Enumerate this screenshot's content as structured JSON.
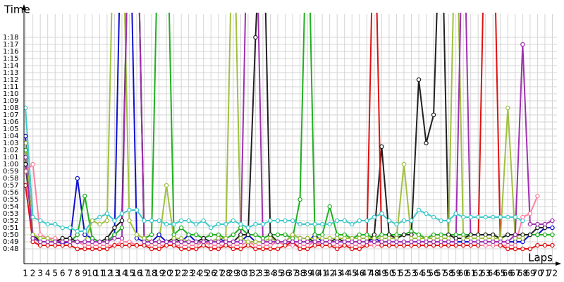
{
  "chart_data": {
    "type": "line",
    "y_label": "Time",
    "x_label": "Laps",
    "x": [
      1,
      2,
      3,
      4,
      5,
      6,
      7,
      8,
      9,
      10,
      11,
      12,
      13,
      14,
      15,
      16,
      17,
      18,
      19,
      20,
      21,
      22,
      23,
      24,
      25,
      26,
      27,
      28,
      29,
      30,
      31,
      32,
      33,
      34,
      35,
      36,
      37,
      38,
      39,
      40,
      41,
      42,
      43,
      44,
      45,
      46,
      47,
      48,
      49,
      50,
      51,
      52,
      53,
      54,
      55,
      56,
      57,
      58,
      59,
      60,
      61,
      62,
      63,
      64,
      65,
      66,
      67,
      68,
      69,
      70,
      71,
      72
    ],
    "xlim": [
      0.8,
      73
    ],
    "xticks": [
      1,
      2,
      3,
      4,
      5,
      6,
      7,
      8,
      9,
      10,
      11,
      12,
      13,
      14,
      15,
      16,
      17,
      18,
      19,
      20,
      21,
      22,
      23,
      24,
      25,
      26,
      27,
      28,
      29,
      30,
      31,
      32,
      33,
      34,
      35,
      36,
      37,
      38,
      39,
      40,
      41,
      42,
      43,
      44,
      45,
      46,
      47,
      48,
      49,
      50,
      51,
      52,
      53,
      54,
      55,
      56,
      57,
      58,
      59,
      60,
      61,
      62,
      63,
      64,
      65,
      66,
      67,
      68,
      69,
      70,
      71,
      72
    ],
    "ylim": [
      46,
      81
    ],
    "yticks": [
      {
        "value": 48,
        "label": "0:48"
      },
      {
        "value": 49,
        "label": "0:49"
      },
      {
        "value": 50,
        "label": "0:50"
      },
      {
        "value": 51,
        "label": "0:51"
      },
      {
        "value": 52,
        "label": "0:52"
      },
      {
        "value": 53,
        "label": "0:53"
      },
      {
        "value": 54,
        "label": "0:54"
      },
      {
        "value": 55,
        "label": "0:55"
      },
      {
        "value": 56,
        "label": "0:56"
      },
      {
        "value": 57,
        "label": "0:57"
      },
      {
        "value": 58,
        "label": "0:58"
      },
      {
        "value": 59,
        "label": "0:59"
      },
      {
        "value": 60,
        "label": "1:00"
      },
      {
        "value": 61,
        "label": "1:01"
      },
      {
        "value": 62,
        "label": "1:02"
      },
      {
        "value": 63,
        "label": "1:03"
      },
      {
        "value": 64,
        "label": "1:04"
      },
      {
        "value": 65,
        "label": "1:05"
      },
      {
        "value": 66,
        "label": "1:06"
      },
      {
        "value": 67,
        "label": "1:07"
      },
      {
        "value": 68,
        "label": "1:08"
      },
      {
        "value": 69,
        "label": "1:09"
      },
      {
        "value": 70,
        "label": "1:10"
      },
      {
        "value": 71,
        "label": "1:11"
      },
      {
        "value": 72,
        "label": "1:12"
      },
      {
        "value": 73,
        "label": "1:13"
      },
      {
        "value": 74,
        "label": "1:14"
      },
      {
        "value": 75,
        "label": "1:15"
      },
      {
        "value": 76,
        "label": "1:16"
      },
      {
        "value": 77,
        "label": "1:17"
      },
      {
        "value": 78,
        "label": "1:18"
      }
    ],
    "grid": true,
    "series": [
      {
        "color": "#1010d0",
        "values": [
          64,
          49.5,
          49,
          49,
          49,
          48.8,
          49,
          58,
          50,
          49.5,
          49,
          49,
          50,
          100,
          100,
          49.5,
          49,
          49,
          50,
          49,
          49,
          49,
          50,
          49,
          49,
          49,
          49.5,
          49,
          49,
          49,
          50,
          49,
          49,
          49,
          49,
          49,
          49,
          49,
          49,
          50,
          49,
          49,
          49,
          49,
          49,
          49,
          49,
          49.5,
          49,
          49,
          49,
          49,
          49,
          49,
          49,
          49,
          49,
          49,
          49,
          49,
          49,
          49,
          49,
          49,
          49,
          49,
          49,
          49,
          50,
          50,
          51,
          51
        ]
      },
      {
        "color": "#20b020",
        "values": [
          62,
          50,
          49.5,
          49.5,
          49,
          49,
          49,
          50,
          55.5,
          49.5,
          49,
          49,
          50,
          51,
          100,
          100,
          49.5,
          50,
          100,
          100,
          50,
          51,
          50,
          50,
          49.5,
          50,
          50,
          49.5,
          50,
          51,
          50,
          50,
          49.5,
          50,
          50,
          50,
          49.5,
          55,
          100,
          50,
          50,
          54,
          50,
          50,
          49.5,
          50,
          50,
          49.5,
          50,
          50,
          50,
          50,
          50.5,
          50,
          49.5,
          50,
          50,
          50,
          50,
          50,
          50,
          50,
          50,
          50,
          49.5,
          50,
          50,
          50,
          50,
          50,
          50,
          50
        ]
      },
      {
        "color": "#40c8c8",
        "values": [
          68,
          52.5,
          52,
          51.5,
          51.5,
          51,
          51,
          50.5,
          50.5,
          52,
          52.5,
          53,
          52,
          53,
          53.5,
          53.5,
          52,
          52,
          52,
          51.5,
          51.5,
          52,
          52,
          51.5,
          52,
          51,
          51.5,
          51.5,
          52,
          51.5,
          51,
          51.5,
          51.5,
          52,
          52,
          52,
          52,
          51.5,
          51.5,
          51.5,
          51.5,
          51.5,
          52,
          52,
          51.5,
          52,
          52,
          52.5,
          53,
          52,
          51.5,
          52,
          52,
          53.5,
          53,
          52.5,
          52,
          52,
          53,
          52.5,
          52.5,
          52.5,
          52.5,
          52.5,
          52.5,
          52.5,
          52.5,
          52,
          null,
          null,
          null,
          null
        ]
      },
      {
        "color": "#ff80a0",
        "values": [
          59,
          60,
          50,
          49.5,
          49.5,
          49,
          49,
          49,
          48.5,
          48.5,
          48.5,
          48.5,
          48.5,
          49,
          49,
          48.5,
          48.5,
          48.5,
          48.5,
          48.5,
          48.5,
          48.5,
          48.5,
          48.5,
          49,
          48.5,
          48.5,
          48.5,
          48.5,
          48.5,
          49,
          48.5,
          48.5,
          48.5,
          49,
          48.5,
          48.5,
          48.5,
          48.5,
          49,
          48.5,
          48.5,
          48.5,
          48.5,
          48.5,
          48.5,
          48.5,
          48.5,
          48.5,
          48.5,
          48.5,
          48.5,
          48.5,
          48.5,
          48.5,
          48.5,
          48.5,
          48.5,
          48.5,
          48.5,
          48.5,
          48.5,
          48.5,
          48.5,
          48.5,
          48.5,
          48.5,
          52.5,
          53,
          55.5,
          null,
          null
        ]
      },
      {
        "color": "#202020",
        "values": [
          60,
          50,
          49,
          49,
          49,
          49.5,
          49.5,
          49,
          49,
          49,
          49,
          49.5,
          51,
          52,
          100,
          100,
          49.5,
          49,
          49,
          49,
          49.5,
          49,
          49,
          49,
          49.5,
          49,
          49,
          49,
          49,
          50,
          50,
          78,
          100,
          50,
          49,
          49,
          50,
          49.5,
          49.5,
          49,
          49,
          49,
          49.5,
          49,
          49,
          49,
          49,
          50,
          62.5,
          50,
          49.5,
          50,
          50,
          72,
          63,
          67,
          100,
          50,
          49.5,
          49.5,
          50,
          50,
          50,
          50,
          49.5,
          50,
          50,
          50,
          50,
          51,
          51,
          null
        ]
      },
      {
        "color": "#e01010",
        "values": [
          57,
          49,
          48.5,
          48.5,
          48.5,
          48.5,
          48.5,
          48,
          48,
          48,
          48,
          48,
          48.5,
          48.5,
          48.5,
          48.5,
          48.5,
          48,
          48,
          48.5,
          48.5,
          48,
          48,
          48,
          48.5,
          48,
          48,
          48.5,
          48,
          48,
          48.5,
          48,
          48,
          48,
          48,
          48.5,
          49,
          48,
          48,
          48.5,
          48.5,
          48.5,
          48,
          48.5,
          48,
          48,
          48.5,
          100,
          48.5,
          48.5,
          48.5,
          48.5,
          48.5,
          48.5,
          48.5,
          48.5,
          48.5,
          48.5,
          48.5,
          48.5,
          48.5,
          48.5,
          100,
          100,
          48.5,
          48,
          48,
          48,
          48,
          48.5,
          48.5,
          48.5
        ]
      },
      {
        "color": "#a0c040",
        "values": [
          63,
          50,
          49.5,
          49.5,
          49,
          49,
          49,
          49,
          49,
          52,
          51.5,
          52,
          100,
          100,
          52,
          50,
          49.5,
          49,
          49,
          57,
          49.5,
          49.5,
          49,
          49,
          49,
          49,
          49.5,
          49.5,
          100,
          49.5,
          49,
          49,
          49,
          49.5,
          49,
          49,
          50,
          49.5,
          49.5,
          49.5,
          49.5,
          49.5,
          49.5,
          49.5,
          49.5,
          49.5,
          49.5,
          49.5,
          49.5,
          49.5,
          49.5,
          60,
          49.5,
          49.5,
          49.5,
          49.5,
          49.5,
          49.5,
          100,
          49.5,
          49.5,
          49.5,
          49.5,
          49.5,
          49.5,
          68,
          49.5,
          49.5,
          null,
          null,
          null,
          null
        ]
      },
      {
        "color": "#a030b0",
        "values": [
          61,
          49.5,
          49,
          49,
          49,
          49,
          49,
          49,
          49,
          49,
          49,
          49,
          49.5,
          49.5,
          100,
          100,
          49,
          49,
          49,
          49,
          49,
          49,
          49,
          49,
          49,
          49,
          49,
          49,
          49,
          49,
          100,
          100,
          49,
          49,
          49,
          49,
          49,
          49,
          49,
          49,
          49,
          49,
          49,
          49,
          49,
          49,
          49,
          49,
          49,
          49,
          49,
          49,
          49,
          49,
          49,
          49,
          49,
          49,
          49,
          100,
          49,
          49,
          49,
          49,
          49,
          49,
          50,
          77,
          51.5,
          51.5,
          51.5,
          52
        ]
      }
    ]
  }
}
